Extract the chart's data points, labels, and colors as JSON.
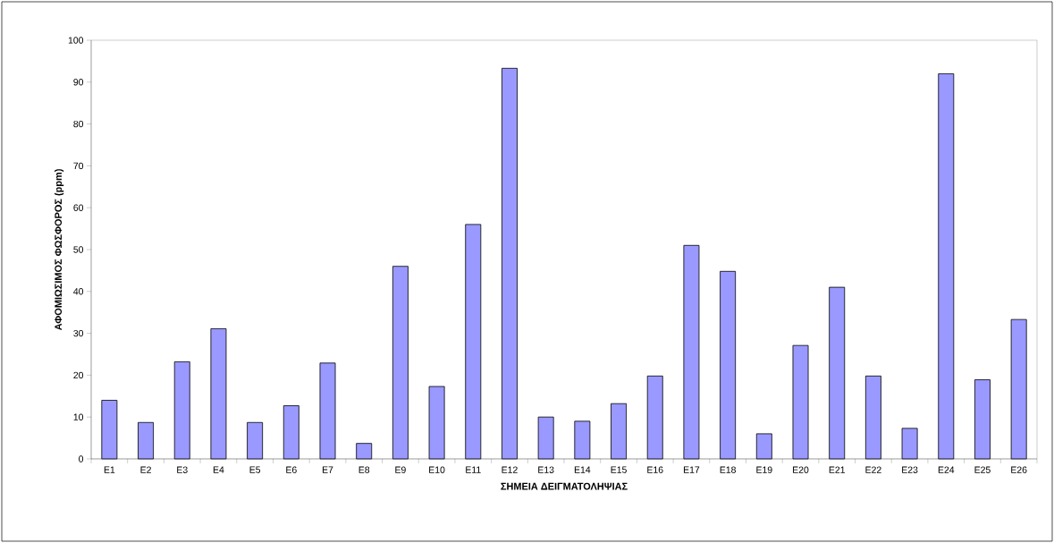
{
  "chart_data": {
    "type": "bar",
    "xlabel": "ΣΗΜΕΙΑ ΔΕΙΓΜΑΤΟΛΗΨΙΑΣ",
    "ylabel": "ΑΦΟΜΙΩΣΙΜΟΣ ΦΩΣΦΟΡΟΣ (ppm)",
    "categories": [
      "E1",
      "E2",
      "E3",
      "E4",
      "E5",
      "E6",
      "E7",
      "E8",
      "E9",
      "E10",
      "E11",
      "E12",
      "E13",
      "E14",
      "E15",
      "E16",
      "E17",
      "E18",
      "E19",
      "E20",
      "E21",
      "E22",
      "E23",
      "E24",
      "E25",
      "E26"
    ],
    "values": [
      14,
      8.7,
      23.2,
      31.1,
      8.7,
      12.7,
      22.9,
      3.7,
      46,
      17.3,
      56,
      93.3,
      10,
      9,
      13.2,
      19.8,
      51,
      44.8,
      6,
      27.1,
      41,
      19.8,
      7.3,
      92,
      18.9,
      33.3
    ],
    "color": "#9999ff",
    "ylim": [
      0,
      100
    ],
    "yticks": [
      0,
      10,
      20,
      30,
      40,
      50,
      60,
      70,
      80,
      90,
      100
    ]
  }
}
